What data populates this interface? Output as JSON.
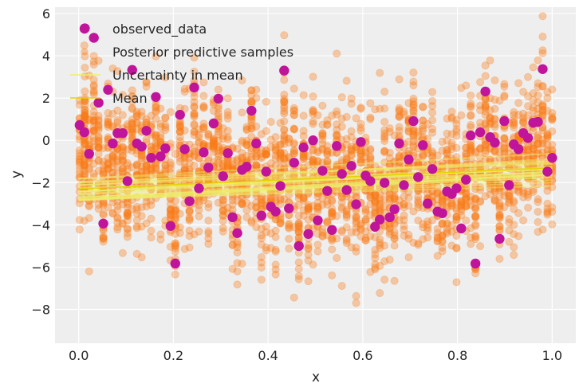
{
  "chart_data": {
    "type": "scatter",
    "title": "",
    "xlabel": "x",
    "ylabel": "y",
    "xlim": [
      -0.05,
      1.05
    ],
    "ylim": [
      -9.6,
      6.3
    ],
    "grid": true,
    "xticks": [
      0.0,
      0.2,
      0.4,
      0.6,
      0.8,
      1.0
    ],
    "xtick_labels": [
      "0.0",
      "0.2",
      "0.4",
      "0.6",
      "0.8",
      "1.0"
    ],
    "yticks": [
      6,
      4,
      2,
      0,
      -2,
      -4,
      -6,
      -8
    ],
    "ytick_labels": [
      "6",
      "4",
      "2",
      "0",
      "−2",
      "−4",
      "−6",
      "−8"
    ],
    "legend": {
      "placement": "top-left",
      "entries": [
        {
          "label": "observed_data",
          "kind": "marker",
          "color": "#c0149a"
        },
        {
          "label": "Posterior predictive samples",
          "kind": "marker",
          "color": "#fa7c17"
        },
        {
          "label": "Uncertainty in mean",
          "kind": "line",
          "color": "#e8e85a"
        },
        {
          "label": "Mean",
          "kind": "line",
          "color": "#e6d800"
        }
      ]
    },
    "colors": {
      "background": "#eeeeee",
      "grid": "#ffffff",
      "observed": "#c0149a",
      "posterior": "#fa7c17",
      "uncertainty": "#eded6a",
      "mean": "#e3d400"
    },
    "mean_line": {
      "x": [
        0.0,
        1.0
      ],
      "y": [
        -2.3,
        -1.3
      ]
    },
    "uncertainty_band": {
      "x": [
        0.0,
        1.0
      ],
      "intercept_range": [
        -2.85,
        -1.8
      ],
      "slope_range": [
        0.6,
        1.4
      ],
      "n_lines": 30
    },
    "posterior_predictive_samples": {
      "description": "vertical columns of semi-transparent samples at each observed x; spread around the observed value",
      "typical_spread_sd": 1.3,
      "samples_per_x": 28
    },
    "series": [
      {
        "name": "observed_data",
        "x": [
          0.013,
          0.032,
          0.002,
          0.012,
          0.022,
          0.042,
          0.052,
          0.062,
          0.072,
          0.082,
          0.093,
          0.103,
          0.113,
          0.123,
          0.133,
          0.143,
          0.153,
          0.163,
          0.173,
          0.183,
          0.194,
          0.204,
          0.214,
          0.224,
          0.234,
          0.244,
          0.254,
          0.264,
          0.274,
          0.285,
          0.295,
          0.305,
          0.315,
          0.325,
          0.335,
          0.345,
          0.355,
          0.365,
          0.375,
          0.386,
          0.396,
          0.406,
          0.416,
          0.426,
          0.434,
          0.444,
          0.455,
          0.465,
          0.475,
          0.485,
          0.495,
          0.505,
          0.515,
          0.525,
          0.535,
          0.545,
          0.556,
          0.566,
          0.576,
          0.586,
          0.596,
          0.606,
          0.616,
          0.626,
          0.636,
          0.646,
          0.657,
          0.667,
          0.677,
          0.687,
          0.697,
          0.707,
          0.717,
          0.727,
          0.737,
          0.747,
          0.758,
          0.768,
          0.778,
          0.788,
          0.798,
          0.808,
          0.818,
          0.828,
          0.838,
          0.848,
          0.859,
          0.869,
          0.879,
          0.889,
          0.899,
          0.909,
          0.919,
          0.929,
          0.939,
          0.949,
          0.96,
          0.97,
          0.98,
          0.99,
          1.0
        ],
        "y": [
          5.3,
          4.85,
          0.72,
          0.38,
          -0.64,
          1.78,
          -3.94,
          2.39,
          -0.15,
          0.34,
          0.34,
          -1.93,
          3.33,
          -0.15,
          -0.3,
          0.45,
          -0.83,
          2.05,
          -0.76,
          -0.38,
          -4.05,
          -5.83,
          1.21,
          -0.42,
          -2.88,
          2.5,
          -2.27,
          -0.57,
          -1.29,
          0.8,
          1.97,
          -1.7,
          -0.61,
          -3.64,
          -4.39,
          -1.4,
          -1.25,
          1.4,
          -0.15,
          -3.56,
          -1.48,
          -3.14,
          -3.37,
          -2.16,
          3.3,
          -3.22,
          -1.06,
          -5.0,
          -0.34,
          -4.43,
          0.0,
          -3.79,
          -1.44,
          -2.39,
          -4.24,
          -0.27,
          -1.59,
          -2.35,
          -1.21,
          -3.03,
          -0.08,
          -1.67,
          -1.93,
          -4.09,
          -3.75,
          -2.01,
          -3.64,
          -3.26,
          -0.15,
          -2.12,
          -0.91,
          0.91,
          -1.74,
          -0.23,
          -2.99,
          -1.36,
          -3.37,
          -3.45,
          -2.42,
          -2.54,
          -2.27,
          -4.17,
          -1.86,
          0.23,
          -5.83,
          0.38,
          2.31,
          0.15,
          -0.11,
          -4.66,
          0.91,
          -2.12,
          -0.19,
          -0.42,
          0.34,
          0.11,
          0.83,
          0.87,
          3.37,
          -1.48,
          -0.83
        ]
      }
    ]
  }
}
